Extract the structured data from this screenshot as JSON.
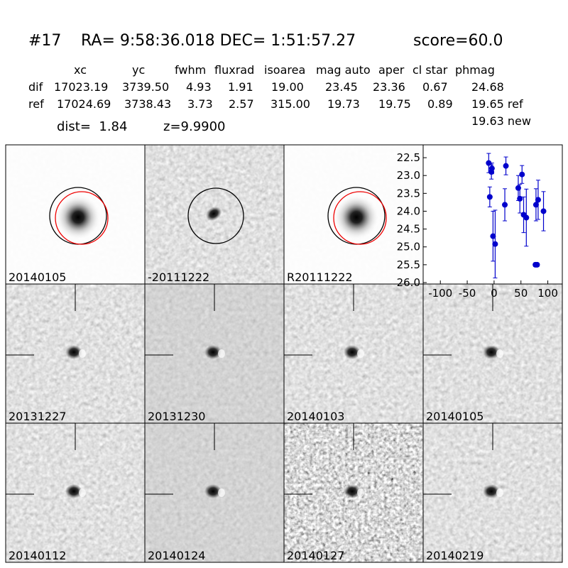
{
  "header": {
    "id": "#17",
    "coords": "RA= 9:58:36.018 DEC= 1:51:57.27",
    "score": "score=60.0"
  },
  "table": {
    "columns": [
      "xc",
      "yc",
      "fwhm",
      "fluxrad",
      "isoarea",
      "mag auto",
      "aper",
      "cl star",
      "phmag"
    ],
    "rows": [
      [
        "dif",
        "17023.19",
        "3739.50",
        "4.93",
        "1.91",
        "19.00",
        "23.45",
        "23.36",
        "0.67",
        "24.68"
      ],
      [
        "ref",
        "17024.69",
        "3738.43",
        "3.73",
        "2.57",
        "315.00",
        "19.73",
        "19.75",
        "0.89",
        "19.65 ref"
      ]
    ],
    "extra": "19.63 new"
  },
  "dist": "dist=  1.84",
  "z": "z=9.9900",
  "stamps": [
    {
      "label": "20140105"
    },
    {
      "label": "-20111222"
    },
    {
      "label": "R20111222"
    },
    {
      "label": "20131227"
    },
    {
      "label": "20131230"
    },
    {
      "label": "20140103"
    },
    {
      "label": "20140105",
      "color": "#ff0000"
    },
    {
      "label": "20140112"
    },
    {
      "label": "20140124"
    },
    {
      "label": "20140127"
    },
    {
      "label": "20140219"
    }
  ],
  "chart_data": {
    "type": "scatter",
    "color": "#0000cc",
    "x": [
      -10,
      -8,
      -5,
      -4,
      -2,
      2,
      20,
      22,
      45,
      48,
      52,
      55,
      60,
      77,
      80,
      78,
      82,
      92
    ],
    "y": [
      22.65,
      23.6,
      22.9,
      22.8,
      24.7,
      24.92,
      23.82,
      22.73,
      23.35,
      23.65,
      22.97,
      24.1,
      24.18,
      25.5,
      25.5,
      23.82,
      23.68,
      24.0
    ],
    "err": [
      0.27,
      0.28,
      0.2,
      0.15,
      0.7,
      0.95,
      0.45,
      0.25,
      0.35,
      0.4,
      0.25,
      0.5,
      0.8,
      0.05,
      0.05,
      0.45,
      0.55,
      0.55
    ],
    "xlim": [
      -132,
      127
    ],
    "ylim": [
      26.04,
      22.14
    ],
    "xticks": [
      -100,
      -50,
      0,
      50,
      100
    ],
    "yticks": [
      22.5,
      {
        "value": 23,
        "label": "23.0"
      },
      23.5,
      {
        "value": 24,
        "label": "24.0"
      },
      24.5,
      {
        "value": 25,
        "label": "25.0"
      },
      25.5,
      {
        "value": 26,
        "label": "26.0"
      }
    ]
  }
}
